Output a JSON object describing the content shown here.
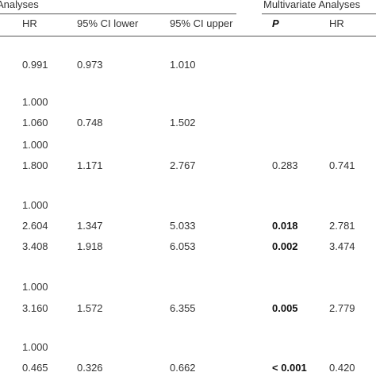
{
  "header": {
    "group_left": "Analyses",
    "group_right": "Multivariate Analyses",
    "columns": [
      "HR",
      "95% CI lower",
      "95% CI upper",
      "P",
      "HR"
    ]
  },
  "table": {
    "rows": [
      [
        "0.991",
        "0.973",
        "1.010",
        null,
        null
      ],
      [
        "1.000",
        null,
        null,
        null,
        null
      ],
      [
        "1.060",
        "0.748",
        "1.502",
        null,
        null
      ],
      [
        "1.000",
        null,
        null,
        null,
        null
      ],
      [
        "1.800",
        "1.171",
        "2.767",
        "0.283",
        "0.741"
      ],
      [
        "1.000",
        null,
        null,
        null,
        null
      ],
      [
        "2.604",
        "1.347",
        "5.033",
        {
          "text": "0.018",
          "bold": true
        },
        "2.781"
      ],
      [
        "3.408",
        "1.918",
        "6.053",
        {
          "text": "0.002",
          "bold": true
        },
        "3.474"
      ],
      [
        "1.000",
        null,
        null,
        null,
        null
      ],
      [
        "3.160",
        "1.572",
        "6.355",
        {
          "text": "0.005",
          "bold": true
        },
        "2.779"
      ],
      [
        "1.000",
        null,
        null,
        null,
        null
      ],
      [
        "0.465",
        "0.326",
        "0.662",
        {
          "text": "< 0.001",
          "bold": true
        },
        "0.420"
      ]
    ]
  }
}
